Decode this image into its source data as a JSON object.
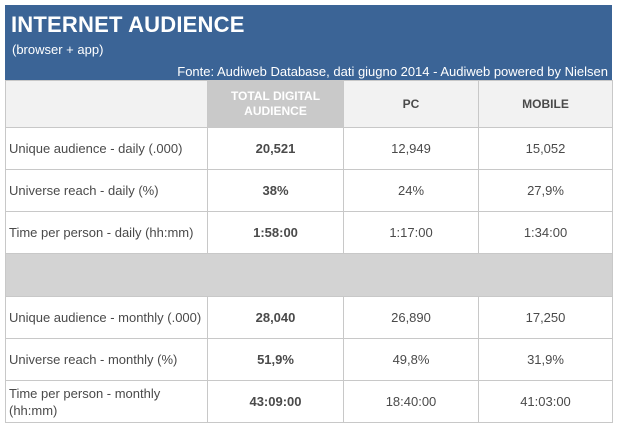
{
  "header": {
    "title": "INTERNET AUDIENCE",
    "subtitle": "(browser + app)",
    "source": "Fonte: Audiweb Database, dati giugno 2014 - Audiweb powered by Nielsen"
  },
  "columns": {
    "total_line1": "TOTAL DIGITAL",
    "total_line2": "AUDIENCE",
    "pc": "PC",
    "mobile": "MOBILE"
  },
  "daily": [
    {
      "label": "Unique audience - daily (.000)",
      "total": "20,521",
      "pc": "12,949",
      "mobile": "15,052"
    },
    {
      "label": "Universe reach - daily (%)",
      "total": "38%",
      "pc": "24%",
      "mobile": "27,9%"
    },
    {
      "label": "Time per person - daily (hh:mm)",
      "total": "1:58:00",
      "pc": "1:17:00",
      "mobile": "1:34:00"
    }
  ],
  "monthly": [
    {
      "label": "Unique audience - monthly (.000)",
      "total": "28,040",
      "pc": "26,890",
      "mobile": "17,250"
    },
    {
      "label": "Universe reach - monthly (%)",
      "total": "51,9%",
      "pc": "49,8%",
      "mobile": "31,9%"
    },
    {
      "label": "Time per person - monthly (hh:mm)",
      "total": "43:09:00",
      "pc": "18:40:00",
      "mobile": "41:03:00"
    }
  ],
  "colors": {
    "header_bg": "#3b6496",
    "total_header_bg": "#c9c9c9",
    "separator_bg": "#d3d3d3"
  }
}
